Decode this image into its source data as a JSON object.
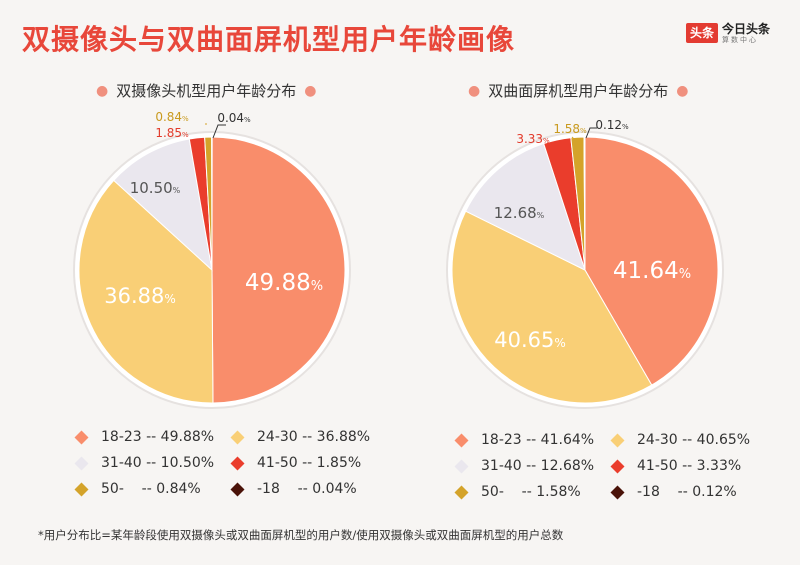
{
  "header": {
    "title": "双摄像头与双曲面屏机型用户年龄画像",
    "logo_box": "头条",
    "logo_text": "今日头条",
    "logo_sub": "算数中心"
  },
  "colors": {
    "18-23": "#f98d6b",
    "24-30": "#f9cf76",
    "31-40": "#eae7ee",
    "41-50": "#ea3d2c",
    "50-": "#d4a32a",
    "-18": "#4a1208"
  },
  "chart_data": [
    {
      "type": "pie",
      "title": "双摄像头机型用户年龄分布",
      "categories": [
        "18-23",
        "24-30",
        "31-40",
        "41-50",
        "50-",
        "-18"
      ],
      "values": [
        49.88,
        36.88,
        10.5,
        1.85,
        0.84,
        0.04
      ],
      "value_labels": [
        "49.88",
        "36.88",
        "10.50",
        "1.85",
        "0.84",
        "0.04"
      ],
      "unit": "%",
      "legend": [
        "18-23 -- 49.88%",
        "24-30 -- 36.88%",
        "31-40 -- 10.50%",
        "41-50 -- 1.85%",
        "50-    -- 0.84%",
        "-18    -- 0.04%"
      ]
    },
    {
      "type": "pie",
      "title": "双曲面屏机型用户年龄分布",
      "categories": [
        "18-23",
        "24-30",
        "31-40",
        "41-50",
        "50-",
        "-18"
      ],
      "values": [
        41.64,
        40.65,
        12.68,
        3.33,
        1.58,
        0.12
      ],
      "value_labels": [
        "41.64",
        "40.65",
        "12.68",
        "3.33",
        "1.58",
        "0.12"
      ],
      "unit": "%",
      "legend": [
        "18-23 -- 41.64%",
        "24-30 -- 40.65%",
        "31-40 -- 12.68%",
        "41-50 -- 3.33%",
        "50-    -- 1.58%",
        "-18    -- 0.12%"
      ]
    }
  ],
  "footnote": "*用户分布比=某年龄段使用双摄像头或双曲面屏机型的用户数/使用双摄像头或双曲面屏机型的用户总数"
}
